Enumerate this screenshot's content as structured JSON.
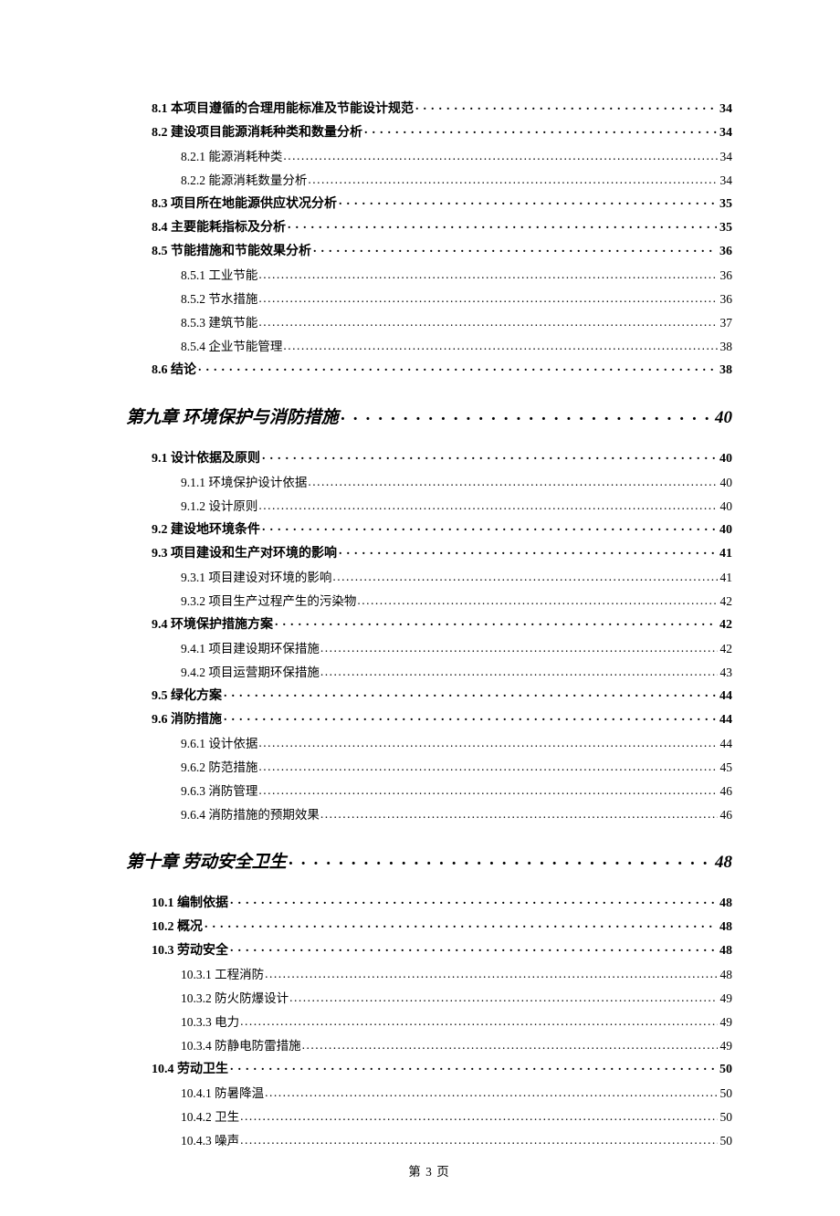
{
  "toc": [
    {
      "level": "level-1",
      "label": "8.1 本项目遵循的合理用能标准及节能设计规范",
      "page": "34",
      "leader": "dots-bold"
    },
    {
      "level": "level-1",
      "label": "8.2 建设项目能源消耗种类和数量分析",
      "page": "34",
      "leader": "dots-bold"
    },
    {
      "level": "level-2",
      "label": "8.2.1 能源消耗种类",
      "page": "34",
      "leader": "dots-normal"
    },
    {
      "level": "level-2",
      "label": "8.2.2 能源消耗数量分析",
      "page": "34",
      "leader": "dots-normal"
    },
    {
      "level": "level-1",
      "label": "8.3 项目所在地能源供应状况分析",
      "page": "35",
      "leader": "dots-bold"
    },
    {
      "level": "level-1",
      "label": "8.4 主要能耗指标及分析",
      "page": "35",
      "leader": "dots-bold"
    },
    {
      "level": "level-1",
      "label": "8.5 节能措施和节能效果分析",
      "page": "36",
      "leader": "dots-bold"
    },
    {
      "level": "level-2",
      "label": "8.5.1 工业节能",
      "page": "36",
      "leader": "dots-normal"
    },
    {
      "level": "level-2",
      "label": "8.5.2 节水措施",
      "page": "36",
      "leader": "dots-normal"
    },
    {
      "level": "level-2",
      "label": "8.5.3 建筑节能",
      "page": "37",
      "leader": "dots-normal"
    },
    {
      "level": "level-2",
      "label": "8.5.4 企业节能管理",
      "page": "38",
      "leader": "dots-normal"
    },
    {
      "level": "level-1",
      "label": "8.6 结论",
      "page": "38",
      "leader": "dots-bold"
    },
    {
      "level": "chapter",
      "label": "第九章 环境保护与消防措施",
      "page": "40",
      "leader": "dots-chapter"
    },
    {
      "level": "level-1",
      "label": "9.1 设计依据及原则",
      "page": "40",
      "leader": "dots-bold"
    },
    {
      "level": "level-2",
      "label": "9.1.1 环境保护设计依据",
      "page": "40",
      "leader": "dots-normal"
    },
    {
      "level": "level-2",
      "label": "9.1.2 设计原则",
      "page": "40",
      "leader": "dots-normal"
    },
    {
      "level": "level-1",
      "label": "9.2 建设地环境条件",
      "page": "40",
      "leader": "dots-bold"
    },
    {
      "level": "level-1",
      "label": "9.3  项目建设和生产对环境的影响",
      "page": "41",
      "leader": "dots-bold"
    },
    {
      "level": "level-2",
      "label": "9.3.1  项目建设对环境的影响",
      "page": "41",
      "leader": "dots-normal"
    },
    {
      "level": "level-2",
      "label": "9.3.2  项目生产过程产生的污染物",
      "page": "42",
      "leader": "dots-normal"
    },
    {
      "level": "level-1",
      "label": "9.4  环境保护措施方案",
      "page": "42",
      "leader": "dots-bold"
    },
    {
      "level": "level-2",
      "label": "9.4.1  项目建设期环保措施",
      "page": "42",
      "leader": "dots-normal"
    },
    {
      "level": "level-2",
      "label": "9.4.2  项目运营期环保措施",
      "page": "43",
      "leader": "dots-normal"
    },
    {
      "level": "level-1",
      "label": "9.5 绿化方案",
      "page": "44",
      "leader": "dots-bold"
    },
    {
      "level": "level-1",
      "label": "9.6 消防措施",
      "page": "44",
      "leader": "dots-bold"
    },
    {
      "level": "level-2",
      "label": "9.6.1 设计依据",
      "page": "44",
      "leader": "dots-normal"
    },
    {
      "level": "level-2",
      "label": "9.6.2 防范措施",
      "page": "45",
      "leader": "dots-normal"
    },
    {
      "level": "level-2",
      "label": "9.6.3 消防管理",
      "page": "46",
      "leader": "dots-normal"
    },
    {
      "level": "level-2",
      "label": "9.6.4 消防措施的预期效果",
      "page": "46",
      "leader": "dots-normal"
    },
    {
      "level": "chapter",
      "label": "第十章 劳动安全卫生",
      "page": "48",
      "leader": "dots-chapter"
    },
    {
      "level": "level-1",
      "label": "10.1 编制依据",
      "page": "48",
      "leader": "dots-bold"
    },
    {
      "level": "level-1",
      "label": "10.2 概况",
      "page": "48",
      "leader": "dots-bold"
    },
    {
      "level": "level-1",
      "label": "10.3 劳动安全",
      "page": "48",
      "leader": "dots-bold"
    },
    {
      "level": "level-2",
      "label": "10.3.1 工程消防",
      "page": "48",
      "leader": "dots-normal"
    },
    {
      "level": "level-2",
      "label": "10.3.2 防火防爆设计",
      "page": "49",
      "leader": "dots-normal"
    },
    {
      "level": "level-2",
      "label": "10.3.3 电力",
      "page": "49",
      "leader": "dots-normal"
    },
    {
      "level": "level-2",
      "label": "10.3.4 防静电防雷措施",
      "page": "49",
      "leader": "dots-normal"
    },
    {
      "level": "level-1",
      "label": "10.4 劳动卫生",
      "page": "50",
      "leader": "dots-bold"
    },
    {
      "level": "level-2",
      "label": "10.4.1 防暑降温",
      "page": "50",
      "leader": "dots-normal"
    },
    {
      "level": "level-2",
      "label": "10.4.2 卫生",
      "page": "50",
      "leader": "dots-normal"
    },
    {
      "level": "level-2",
      "label": "10.4.3 噪声",
      "page": "50",
      "leader": "dots-normal"
    }
  ],
  "footer": "第 3 页",
  "colors": {
    "text": "#000000",
    "background": "#ffffff"
  },
  "typography": {
    "base_font": "SimSun",
    "chapter_font": "KaiTi",
    "chapter_fontsize": 19,
    "level1_fontsize": 14,
    "level2_fontsize": 13.5,
    "footer_fontsize": 13.5
  }
}
